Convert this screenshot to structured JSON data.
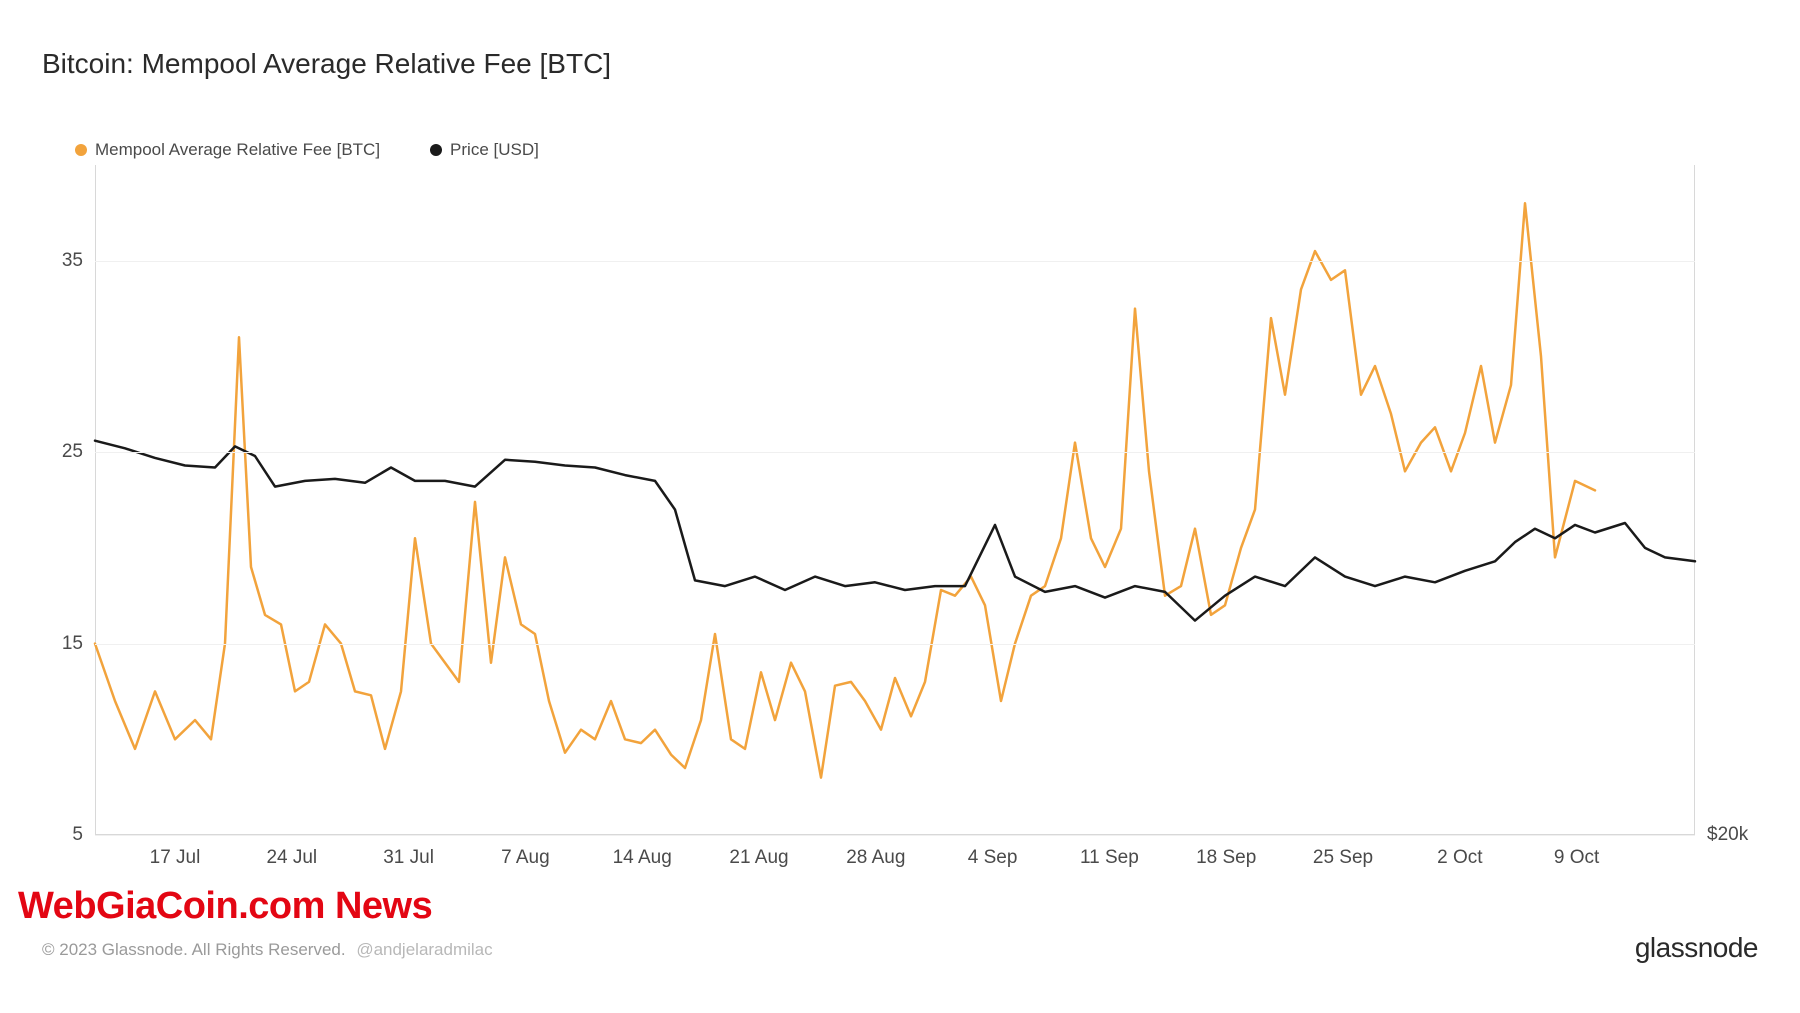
{
  "title": "Bitcoin: Mempool Average Relative Fee [BTC]",
  "legend": {
    "series1": {
      "label": "Mempool Average Relative Fee [BTC]",
      "color": "#f2a33c"
    },
    "series2": {
      "label": "Price [USD]",
      "color": "#1a1a1a"
    }
  },
  "chart": {
    "type": "line",
    "background_color": "#ffffff",
    "grid_color": "#f0f0f0",
    "axis_color": "#d8d8d8",
    "label_color": "#4a4a4a",
    "label_fontsize": 19,
    "line_width": 2.5,
    "y_axis_left": {
      "min": 5,
      "max": 40,
      "ticks": [
        5,
        15,
        25,
        35
      ]
    },
    "y_axis_right": {
      "ticks_raw": [
        20000
      ],
      "tick_labels": [
        "$20k"
      ]
    },
    "x_axis": {
      "tick_labels": [
        "17 Jul",
        "24 Jul",
        "31 Jul",
        "7 Aug",
        "14 Aug",
        "21 Aug",
        "28 Aug",
        "4 Sep",
        "11 Sep",
        "18 Sep",
        "25 Sep",
        "2 Oct",
        "9 Oct"
      ],
      "tick_positions_pct": [
        5.0,
        12.3,
        19.6,
        26.9,
        34.2,
        41.5,
        48.8,
        56.1,
        63.4,
        70.7,
        78.0,
        85.3,
        92.6
      ]
    },
    "fee_series": {
      "color": "#f2a33c",
      "points": [
        [
          0.0,
          15.0
        ],
        [
          1.0,
          12.0
        ],
        [
          2.0,
          9.5
        ],
        [
          3.0,
          12.5
        ],
        [
          4.0,
          10.0
        ],
        [
          5.0,
          11.0
        ],
        [
          5.8,
          10.0
        ],
        [
          6.5,
          15.0
        ],
        [
          7.2,
          31.0
        ],
        [
          7.8,
          19.0
        ],
        [
          8.5,
          16.5
        ],
        [
          9.3,
          16.0
        ],
        [
          10.0,
          12.5
        ],
        [
          10.7,
          13.0
        ],
        [
          11.5,
          16.0
        ],
        [
          12.3,
          15.0
        ],
        [
          13.0,
          12.5
        ],
        [
          13.8,
          12.3
        ],
        [
          14.5,
          9.5
        ],
        [
          15.3,
          12.5
        ],
        [
          16.0,
          20.5
        ],
        [
          16.8,
          15.0
        ],
        [
          17.5,
          14.0
        ],
        [
          18.2,
          13.0
        ],
        [
          19.0,
          22.4
        ],
        [
          19.8,
          14.0
        ],
        [
          20.5,
          19.5
        ],
        [
          21.3,
          16.0
        ],
        [
          22.0,
          15.5
        ],
        [
          22.7,
          12.0
        ],
        [
          23.5,
          9.3
        ],
        [
          24.3,
          10.5
        ],
        [
          25.0,
          10.0
        ],
        [
          25.8,
          12.0
        ],
        [
          26.5,
          10.0
        ],
        [
          27.3,
          9.8
        ],
        [
          28.0,
          10.5
        ],
        [
          28.8,
          9.2
        ],
        [
          29.5,
          8.5
        ],
        [
          30.3,
          11.0
        ],
        [
          31.0,
          15.5
        ],
        [
          31.8,
          10.0
        ],
        [
          32.5,
          9.5
        ],
        [
          33.3,
          13.5
        ],
        [
          34.0,
          11.0
        ],
        [
          34.8,
          14.0
        ],
        [
          35.5,
          12.5
        ],
        [
          36.3,
          8.0
        ],
        [
          37.0,
          12.8
        ],
        [
          37.8,
          13.0
        ],
        [
          38.5,
          12.0
        ],
        [
          39.3,
          10.5
        ],
        [
          40.0,
          13.2
        ],
        [
          40.8,
          11.2
        ],
        [
          41.5,
          13.0
        ],
        [
          42.3,
          17.8
        ],
        [
          43.0,
          17.5
        ],
        [
          43.8,
          18.5
        ],
        [
          44.5,
          17.0
        ],
        [
          45.3,
          12.0
        ],
        [
          46.0,
          15.0
        ],
        [
          46.8,
          17.5
        ],
        [
          47.5,
          18.0
        ],
        [
          48.3,
          20.5
        ],
        [
          49.0,
          25.5
        ],
        [
          49.8,
          20.5
        ],
        [
          50.5,
          19.0
        ],
        [
          51.3,
          21.0
        ],
        [
          52.0,
          32.5
        ],
        [
          52.7,
          24.0
        ],
        [
          53.5,
          17.5
        ],
        [
          54.3,
          18.0
        ],
        [
          55.0,
          21.0
        ],
        [
          55.8,
          16.5
        ],
        [
          56.5,
          17.0
        ],
        [
          57.3,
          20.0
        ],
        [
          58.0,
          22.0
        ],
        [
          58.8,
          32.0
        ],
        [
          59.5,
          28.0
        ],
        [
          60.3,
          33.5
        ],
        [
          61.0,
          35.5
        ],
        [
          61.8,
          34.0
        ],
        [
          62.5,
          34.5
        ],
        [
          63.3,
          28.0
        ],
        [
          64.0,
          29.5
        ],
        [
          64.8,
          27.0
        ],
        [
          65.5,
          24.0
        ],
        [
          66.3,
          25.5
        ],
        [
          67.0,
          26.3
        ],
        [
          67.8,
          24.0
        ],
        [
          68.5,
          26.0
        ],
        [
          69.3,
          29.5
        ],
        [
          70.0,
          25.5
        ],
        [
          70.8,
          28.5
        ],
        [
          71.5,
          38.0
        ],
        [
          72.3,
          30.0
        ],
        [
          73.0,
          19.5
        ],
        [
          74.0,
          23.5
        ],
        [
          75.0,
          23.0
        ]
      ]
    },
    "price_series": {
      "color": "#1a1a1a",
      "points": [
        [
          0.0,
          25.6
        ],
        [
          1.5,
          25.2
        ],
        [
          3.0,
          24.7
        ],
        [
          4.5,
          24.3
        ],
        [
          6.0,
          24.2
        ],
        [
          7.0,
          25.3
        ],
        [
          8.0,
          24.8
        ],
        [
          9.0,
          23.2
        ],
        [
          10.5,
          23.5
        ],
        [
          12.0,
          23.6
        ],
        [
          13.5,
          23.4
        ],
        [
          14.8,
          24.2
        ],
        [
          16.0,
          23.5
        ],
        [
          17.5,
          23.5
        ],
        [
          19.0,
          23.2
        ],
        [
          20.5,
          24.6
        ],
        [
          22.0,
          24.5
        ],
        [
          23.5,
          24.3
        ],
        [
          25.0,
          24.2
        ],
        [
          26.5,
          23.8
        ],
        [
          28.0,
          23.5
        ],
        [
          29.0,
          22.0
        ],
        [
          30.0,
          18.3
        ],
        [
          31.5,
          18.0
        ],
        [
          33.0,
          18.5
        ],
        [
          34.5,
          17.8
        ],
        [
          36.0,
          18.5
        ],
        [
          37.5,
          18.0
        ],
        [
          39.0,
          18.2
        ],
        [
          40.5,
          17.8
        ],
        [
          42.0,
          18.0
        ],
        [
          43.5,
          18.0
        ],
        [
          45.0,
          21.2
        ],
        [
          46.0,
          18.5
        ],
        [
          47.5,
          17.7
        ],
        [
          49.0,
          18.0
        ],
        [
          50.5,
          17.4
        ],
        [
          52.0,
          18.0
        ],
        [
          53.5,
          17.7
        ],
        [
          55.0,
          16.2
        ],
        [
          56.5,
          17.5
        ],
        [
          58.0,
          18.5
        ],
        [
          59.5,
          18.0
        ],
        [
          61.0,
          19.5
        ],
        [
          62.5,
          18.5
        ],
        [
          64.0,
          18.0
        ],
        [
          65.5,
          18.5
        ],
        [
          67.0,
          18.2
        ],
        [
          68.5,
          18.8
        ],
        [
          70.0,
          19.3
        ],
        [
          71.0,
          20.3
        ],
        [
          72.0,
          21.0
        ],
        [
          73.0,
          20.5
        ],
        [
          74.0,
          21.2
        ],
        [
          75.0,
          20.8
        ],
        [
          76.5,
          21.3
        ],
        [
          77.5,
          20.0
        ],
        [
          78.5,
          19.5
        ],
        [
          80.0,
          19.3
        ]
      ]
    },
    "x_domain": [
      0,
      80
    ]
  },
  "watermark": "WebGiaCoin.com News",
  "copyright": "© 2023 Glassnode. All Rights Reserved.",
  "handle": "@andjelaradmilac",
  "brand": "glassnode"
}
